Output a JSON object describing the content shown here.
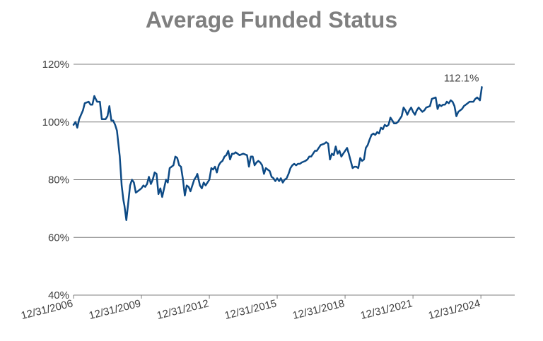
{
  "chart_data": {
    "type": "line",
    "title": "Average Funded Status",
    "xlabel": "",
    "ylabel": "",
    "ylim": [
      40,
      120
    ],
    "yticks": [
      40,
      60,
      80,
      100,
      120
    ],
    "ytick_suffix": "%",
    "xlim": [
      "2006-12-31",
      "2026-06-30"
    ],
    "xtick_labels": [
      "12/31/2006",
      "12/31/2009",
      "12/31/2012",
      "12/31/2015",
      "12/31/2018",
      "12/31/2021",
      "12/31/2024"
    ],
    "xtick_dates": [
      "2006-12-31",
      "2009-12-31",
      "2012-12-31",
      "2015-12-31",
      "2018-12-31",
      "2021-12-31",
      "2024-12-31"
    ],
    "grid": true,
    "line_color": "#0d4a85",
    "series": [
      {
        "name": "",
        "points": [
          [
            "2006-12-31",
            99
          ],
          [
            "2007-02-01",
            100
          ],
          [
            "2007-03-01",
            98
          ],
          [
            "2007-04-01",
            101
          ],
          [
            "2007-06-01",
            104
          ],
          [
            "2007-07-01",
            106.5
          ],
          [
            "2007-09-01",
            107
          ],
          [
            "2007-10-01",
            106
          ],
          [
            "2007-11-01",
            106
          ],
          [
            "2007-12-01",
            109
          ],
          [
            "2008-01-15",
            107
          ],
          [
            "2008-03-01",
            107
          ],
          [
            "2008-04-01",
            101
          ],
          [
            "2008-06-01",
            101
          ],
          [
            "2008-07-01",
            102
          ],
          [
            "2008-08-01",
            105.5
          ],
          [
            "2008-09-01",
            100.5
          ],
          [
            "2008-10-01",
            100.5
          ],
          [
            "2008-11-01",
            99
          ],
          [
            "2008-12-01",
            97
          ],
          [
            "2009-01-15",
            88
          ],
          [
            "2009-02-15",
            78
          ],
          [
            "2009-03-15",
            73
          ],
          [
            "2009-04-01",
            71
          ],
          [
            "2009-05-01",
            66
          ],
          [
            "2009-06-01",
            72
          ],
          [
            "2009-07-01",
            78
          ],
          [
            "2009-08-01",
            80
          ],
          [
            "2009-09-01",
            79
          ],
          [
            "2009-10-01",
            75.5
          ],
          [
            "2009-11-01",
            76
          ],
          [
            "2009-12-31",
            77
          ],
          [
            "2010-02-01",
            78
          ],
          [
            "2010-03-01",
            77.5
          ],
          [
            "2010-04-01",
            78.5
          ],
          [
            "2010-05-01",
            81
          ],
          [
            "2010-06-01",
            78.5
          ],
          [
            "2010-07-01",
            80
          ],
          [
            "2010-08-01",
            82.5
          ],
          [
            "2010-09-01",
            82
          ],
          [
            "2010-10-01",
            75
          ],
          [
            "2010-11-01",
            77
          ],
          [
            "2010-12-01",
            74
          ],
          [
            "2011-01-01",
            77
          ],
          [
            "2011-02-01",
            80
          ],
          [
            "2011-03-01",
            79
          ],
          [
            "2011-04-01",
            84
          ],
          [
            "2011-06-01",
            85
          ],
          [
            "2011-07-01",
            88
          ],
          [
            "2011-08-01",
            87.5
          ],
          [
            "2011-09-01",
            85
          ],
          [
            "2011-10-01",
            84.5
          ],
          [
            "2011-11-01",
            80
          ],
          [
            "2011-12-01",
            74.5
          ],
          [
            "2012-01-01",
            78
          ],
          [
            "2012-02-01",
            77.5
          ],
          [
            "2012-03-01",
            76
          ],
          [
            "2012-05-01",
            80
          ],
          [
            "2012-06-01",
            81
          ],
          [
            "2012-06-20",
            82
          ],
          [
            "2012-08-01",
            78
          ],
          [
            "2012-09-01",
            77
          ],
          [
            "2012-10-01",
            79
          ],
          [
            "2012-11-01",
            78
          ],
          [
            "2012-12-31",
            80
          ],
          [
            "2013-02-01",
            84
          ],
          [
            "2013-03-01",
            83.5
          ],
          [
            "2013-04-01",
            84.5
          ],
          [
            "2013-05-01",
            82.5
          ],
          [
            "2013-06-01",
            85
          ],
          [
            "2013-07-01",
            86
          ],
          [
            "2013-08-01",
            86.5
          ],
          [
            "2013-09-01",
            88
          ],
          [
            "2013-10-01",
            88.5
          ],
          [
            "2013-11-01",
            90
          ],
          [
            "2013-12-01",
            87
          ],
          [
            "2014-01-01",
            89
          ],
          [
            "2014-02-01",
            89
          ],
          [
            "2014-03-01",
            89.5
          ],
          [
            "2014-05-01",
            88.5
          ],
          [
            "2014-07-01",
            89
          ],
          [
            "2014-09-01",
            88.5
          ],
          [
            "2014-10-01",
            84.5
          ],
          [
            "2014-11-01",
            88
          ],
          [
            "2014-12-01",
            88
          ],
          [
            "2015-01-01",
            85
          ],
          [
            "2015-02-01",
            86
          ],
          [
            "2015-03-01",
            86.5
          ],
          [
            "2015-04-01",
            86
          ],
          [
            "2015-05-01",
            85
          ],
          [
            "2015-06-01",
            82
          ],
          [
            "2015-07-01",
            84
          ],
          [
            "2015-08-01",
            83.5
          ],
          [
            "2015-09-01",
            83
          ],
          [
            "2015-10-01",
            81
          ],
          [
            "2015-11-01",
            80.5
          ],
          [
            "2015-12-01",
            79.5
          ],
          [
            "2015-12-31",
            80.5
          ],
          [
            "2016-01-31",
            79.5
          ],
          [
            "2016-02-28",
            80.5
          ],
          [
            "2016-03-31",
            79
          ],
          [
            "2016-04-30",
            80
          ],
          [
            "2016-06-01",
            80.5
          ],
          [
            "2016-07-01",
            82
          ],
          [
            "2016-08-01",
            84
          ],
          [
            "2016-09-01",
            85
          ],
          [
            "2016-10-01",
            85.5
          ],
          [
            "2016-11-01",
            85
          ],
          [
            "2016-12-01",
            85.5
          ],
          [
            "2017-01-01",
            85.5
          ],
          [
            "2017-02-01",
            86
          ],
          [
            "2017-04-01",
            86.5
          ],
          [
            "2017-05-01",
            87
          ],
          [
            "2017-06-01",
            88
          ],
          [
            "2017-07-01",
            88
          ],
          [
            "2017-08-01",
            89
          ],
          [
            "2017-09-01",
            90
          ],
          [
            "2017-10-01",
            90
          ],
          [
            "2017-11-01",
            91
          ],
          [
            "2017-12-01",
            92
          ],
          [
            "2018-02-01",
            92.5
          ],
          [
            "2018-03-01",
            93
          ],
          [
            "2018-04-01",
            92.5
          ],
          [
            "2018-05-01",
            87
          ],
          [
            "2018-06-01",
            89
          ],
          [
            "2018-07-01",
            88.5
          ],
          [
            "2018-08-01",
            91.5
          ],
          [
            "2018-09-01",
            89
          ],
          [
            "2018-10-01",
            90
          ],
          [
            "2018-11-01",
            88
          ],
          [
            "2018-12-01",
            89
          ],
          [
            "2019-01-01",
            90
          ],
          [
            "2019-02-01",
            91
          ],
          [
            "2019-03-01",
            89
          ],
          [
            "2019-05-01",
            84
          ],
          [
            "2019-06-01",
            84.5
          ],
          [
            "2019-07-01",
            84.5
          ],
          [
            "2019-08-01",
            84
          ],
          [
            "2019-09-01",
            87.5
          ],
          [
            "2019-10-01",
            86.5
          ],
          [
            "2019-11-01",
            87
          ],
          [
            "2019-12-01",
            91
          ],
          [
            "2020-01-01",
            92
          ],
          [
            "2020-02-01",
            94
          ],
          [
            "2020-03-01",
            95.5
          ],
          [
            "2020-04-01",
            96
          ],
          [
            "2020-05-01",
            95.5
          ],
          [
            "2020-06-01",
            96.5
          ],
          [
            "2020-07-01",
            96
          ],
          [
            "2020-08-01",
            98
          ],
          [
            "2020-09-01",
            97.5
          ],
          [
            "2020-10-01",
            99
          ],
          [
            "2020-11-01",
            98.5
          ],
          [
            "2020-12-01",
            99
          ],
          [
            "2021-01-01",
            101.5
          ],
          [
            "2021-02-01",
            100.5
          ],
          [
            "2021-03-01",
            99.5
          ],
          [
            "2021-04-01",
            99.5
          ],
          [
            "2021-05-01",
            100
          ],
          [
            "2021-06-01",
            101
          ],
          [
            "2021-07-01",
            102
          ],
          [
            "2021-08-01",
            105
          ],
          [
            "2021-09-01",
            104
          ],
          [
            "2021-10-01",
            102.5
          ],
          [
            "2021-11-01",
            104
          ],
          [
            "2021-12-01",
            105
          ],
          [
            "2022-01-01",
            103.5
          ],
          [
            "2022-02-01",
            102.5
          ],
          [
            "2022-03-01",
            104
          ],
          [
            "2022-04-01",
            105
          ],
          [
            "2022-06-01",
            103.5
          ],
          [
            "2022-07-01",
            104
          ],
          [
            "2022-08-01",
            105
          ],
          [
            "2022-10-01",
            105.5
          ],
          [
            "2022-11-01",
            108
          ],
          [
            "2023-01-01",
            108.5
          ],
          [
            "2023-02-01",
            104.5
          ],
          [
            "2023-03-01",
            106
          ],
          [
            "2023-04-01",
            105.5
          ],
          [
            "2023-05-01",
            106
          ],
          [
            "2023-06-01",
            106
          ],
          [
            "2023-07-01",
            107
          ],
          [
            "2023-08-01",
            106.5
          ],
          [
            "2023-09-01",
            107.5
          ],
          [
            "2023-10-01",
            107
          ],
          [
            "2023-11-01",
            105.5
          ],
          [
            "2023-12-01",
            102
          ],
          [
            "2024-01-01",
            103.5
          ],
          [
            "2024-03-01",
            104.5
          ],
          [
            "2024-04-01",
            105.5
          ],
          [
            "2024-06-01",
            106.5
          ],
          [
            "2024-07-01",
            107
          ],
          [
            "2024-09-01",
            107
          ],
          [
            "2024-10-01",
            108
          ],
          [
            "2024-11-01",
            108.5
          ],
          [
            "2024-12-15",
            107.5
          ],
          [
            "2025-01-15",
            112.1
          ]
        ]
      }
    ],
    "annotations": [
      {
        "text": "112.1%",
        "x": "2025-01-15",
        "y": 112.1
      }
    ]
  }
}
